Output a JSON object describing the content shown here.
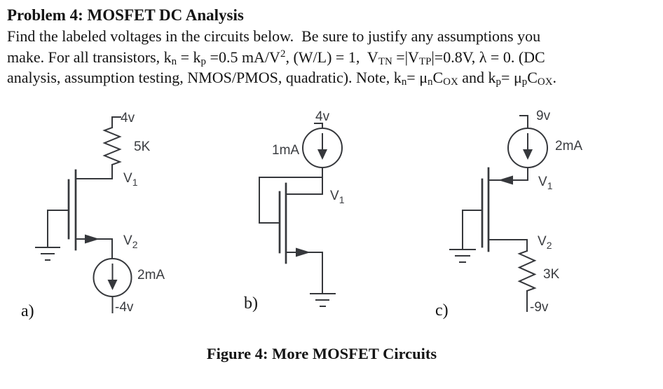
{
  "page": {
    "background": "#ffffff",
    "text_ink": "#141414",
    "schematic_ink": "#36383c"
  },
  "problem": {
    "title": "Problem 4: MOSFET DC Analysis",
    "lines": [
      [
        [
          "n",
          "Find the labeled voltages in the circuits below.  Be sure to justify any assumptions you"
        ]
      ],
      [
        [
          "n",
          "make. For all transistors, k"
        ],
        [
          "s",
          "n"
        ],
        [
          "n",
          " = k"
        ],
        [
          "s",
          "p"
        ],
        [
          "n",
          " =0.5 mA/V"
        ],
        [
          "u",
          "2"
        ],
        [
          "n",
          ", (W/L) = 1,  V"
        ],
        [
          "s",
          "TN"
        ],
        [
          "n",
          " =|V"
        ],
        [
          "s",
          "TP"
        ],
        [
          "n",
          "|=0.8V, λ = 0. (DC"
        ]
      ],
      [
        [
          "n",
          "analysis, assumption testing, NMOS/PMOS, quadratic). Note, k"
        ],
        [
          "s",
          "n"
        ],
        [
          "n",
          "= μ"
        ],
        [
          "s",
          "n"
        ],
        [
          "n",
          "C"
        ],
        [
          "s",
          "OX"
        ],
        [
          "n",
          " and k"
        ],
        [
          "s",
          "p"
        ],
        [
          "n",
          "= μ"
        ],
        [
          "s",
          "p"
        ],
        [
          "n",
          "C"
        ],
        [
          "s",
          "OX"
        ],
        [
          "n",
          "."
        ]
      ]
    ]
  },
  "circuits": {
    "a": {
      "designator": "a)",
      "top_rail_label": "4v",
      "resistor_label": "5K",
      "node1": {
        "base": "V",
        "sub": "1"
      },
      "node2": {
        "base": "V",
        "sub": "2"
      },
      "current_source_label": "2mA",
      "bottom_rail_label": "-4v"
    },
    "b": {
      "designator": "b)",
      "top_rail_label": "4v",
      "current_source_label": "1mA",
      "node1": {
        "base": "V",
        "sub": "1"
      }
    },
    "c": {
      "designator": "c)",
      "top_rail_label": "9v",
      "current_source_label": "2mA",
      "node1": {
        "base": "V",
        "sub": "1"
      },
      "node2": {
        "base": "V",
        "sub": "2"
      },
      "resistor_label": "3K",
      "bottom_rail_label": "-9v"
    }
  },
  "caption": "Figure 4: More MOSFET Circuits"
}
